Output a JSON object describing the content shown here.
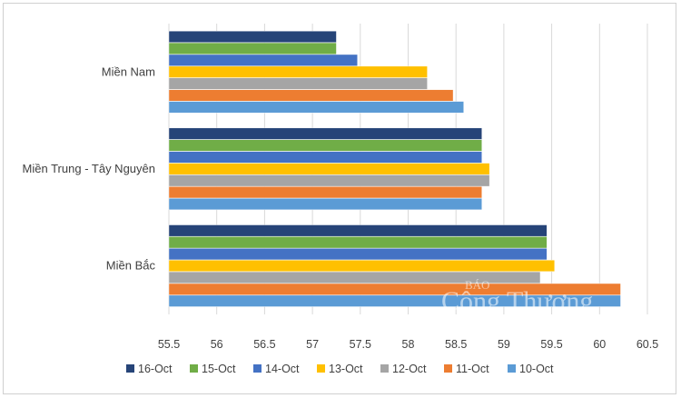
{
  "chart_data": {
    "type": "bar",
    "orientation": "horizontal",
    "title": "",
    "xlabel": "",
    "ylabel": "",
    "categories": [
      "Miền Nam",
      "Miền Trung - Tây Nguyên",
      "Miền Bắc"
    ],
    "xlim": [
      55.5,
      60.5
    ],
    "xticks": [
      "55.5",
      "56",
      "56.5",
      "57",
      "57.5",
      "58",
      "58.5",
      "59",
      "59.5",
      "60",
      "60.5"
    ],
    "grid": "vertical",
    "legend_position": "bottom",
    "series": [
      {
        "name": "16-Oct",
        "color": "#264478",
        "values": [
          57.25,
          58.77,
          59.45
        ]
      },
      {
        "name": "15-Oct",
        "color": "#70AD47",
        "values": [
          57.25,
          58.77,
          59.45
        ]
      },
      {
        "name": "14-Oct",
        "color": "#4472C4",
        "values": [
          57.47,
          58.77,
          59.45
        ]
      },
      {
        "name": "13-Oct",
        "color": "#FFC000",
        "values": [
          58.2,
          58.85,
          59.53
        ]
      },
      {
        "name": "12-Oct",
        "color": "#A5A5A5",
        "values": [
          58.2,
          58.85,
          59.38
        ]
      },
      {
        "name": "11-Oct",
        "color": "#ED7D31",
        "values": [
          58.47,
          58.77,
          60.22
        ]
      },
      {
        "name": "10-Oct",
        "color": "#5B9BD5",
        "values": [
          58.58,
          58.77,
          60.22
        ]
      }
    ]
  },
  "watermark": {
    "small": "BÁO",
    "large": "Công Thương"
  }
}
